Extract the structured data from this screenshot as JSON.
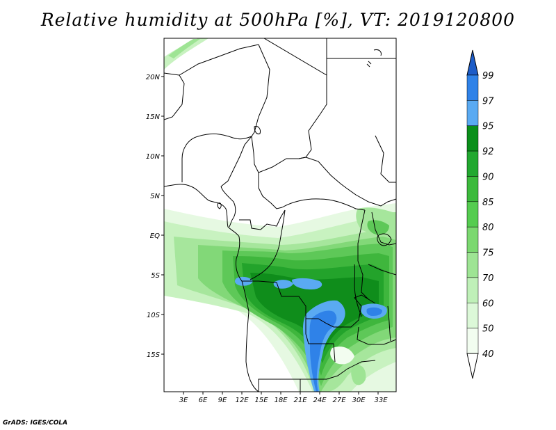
{
  "title": "Relative humidity at 500hPa [%], VT: 2019120800",
  "credit": "GrADS: IGES/COLA",
  "map": {
    "lat_labels": [
      "20N",
      "15N",
      "10N",
      "5N",
      "EQ",
      "5S",
      "10S",
      "15S"
    ],
    "lon_labels": [
      "3E",
      "6E",
      "9E",
      "12E",
      "15E",
      "18E",
      "21E",
      "24E",
      "27E",
      "30E",
      "33E"
    ]
  },
  "colorbar": {
    "levels": [
      "99",
      "97",
      "95",
      "92",
      "90",
      "85",
      "80",
      "75",
      "70",
      "60",
      "50",
      "40"
    ],
    "colors": [
      "#1c5cc8",
      "#2f82e8",
      "#5aaaf2",
      "#0a8f1a",
      "#22a830",
      "#3cba3c",
      "#55cc50",
      "#7bd870",
      "#9ee494",
      "#bff0b8",
      "#dcf8d8",
      "#f2fdf0"
    ]
  }
}
